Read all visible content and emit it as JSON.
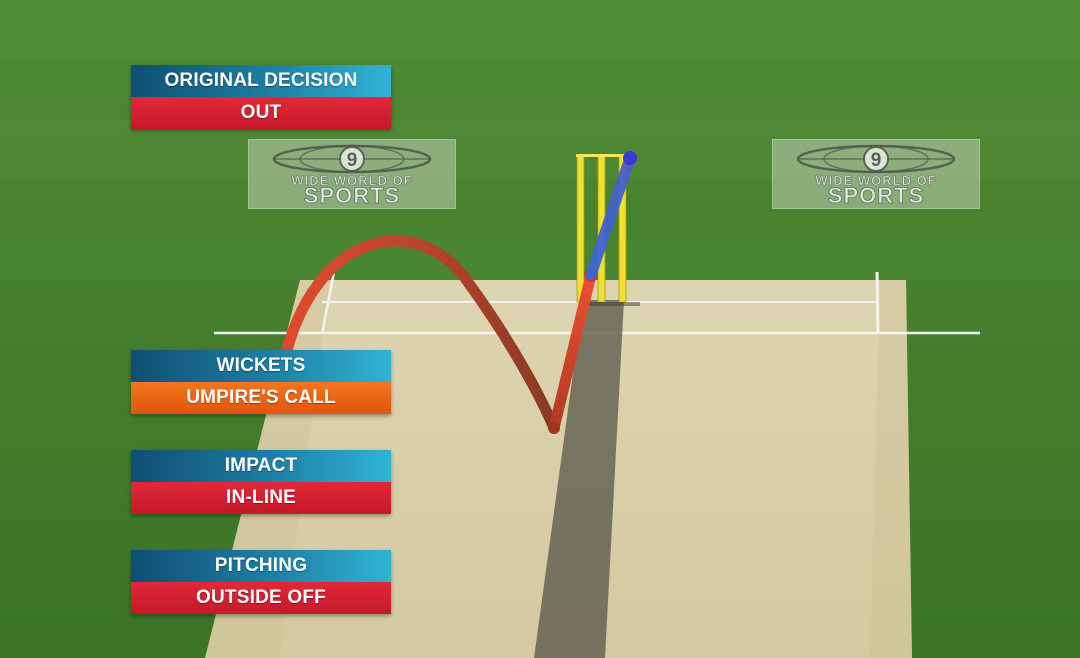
{
  "panels": {
    "original_decision": {
      "label": "ORIGINAL DECISION",
      "value": "OUT",
      "value_color": "#d21f30"
    },
    "wickets": {
      "label": "WICKETS",
      "value": "UMPIRE'S CALL",
      "value_color": "#e8640f"
    },
    "impact": {
      "label": "IMPACT",
      "value": "IN-LINE",
      "value_color": "#d21f30"
    },
    "pitching": {
      "label": "PITCHING",
      "value": "OUTSIDE OFF",
      "value_color": "#d21f30"
    }
  },
  "broadcaster_logo": {
    "line1": "WIDE WORLD OF",
    "line2": "SPORTS",
    "icon": "channel-9-globe-icon"
  },
  "colors": {
    "panel_label": "#1a6e97",
    "ball_trajectory": "#d2402a",
    "predicted_path": "#3a5fd0",
    "stumps": "#f0e030",
    "grass": "#3f7a2a",
    "pitch": "#d8cfaa"
  }
}
